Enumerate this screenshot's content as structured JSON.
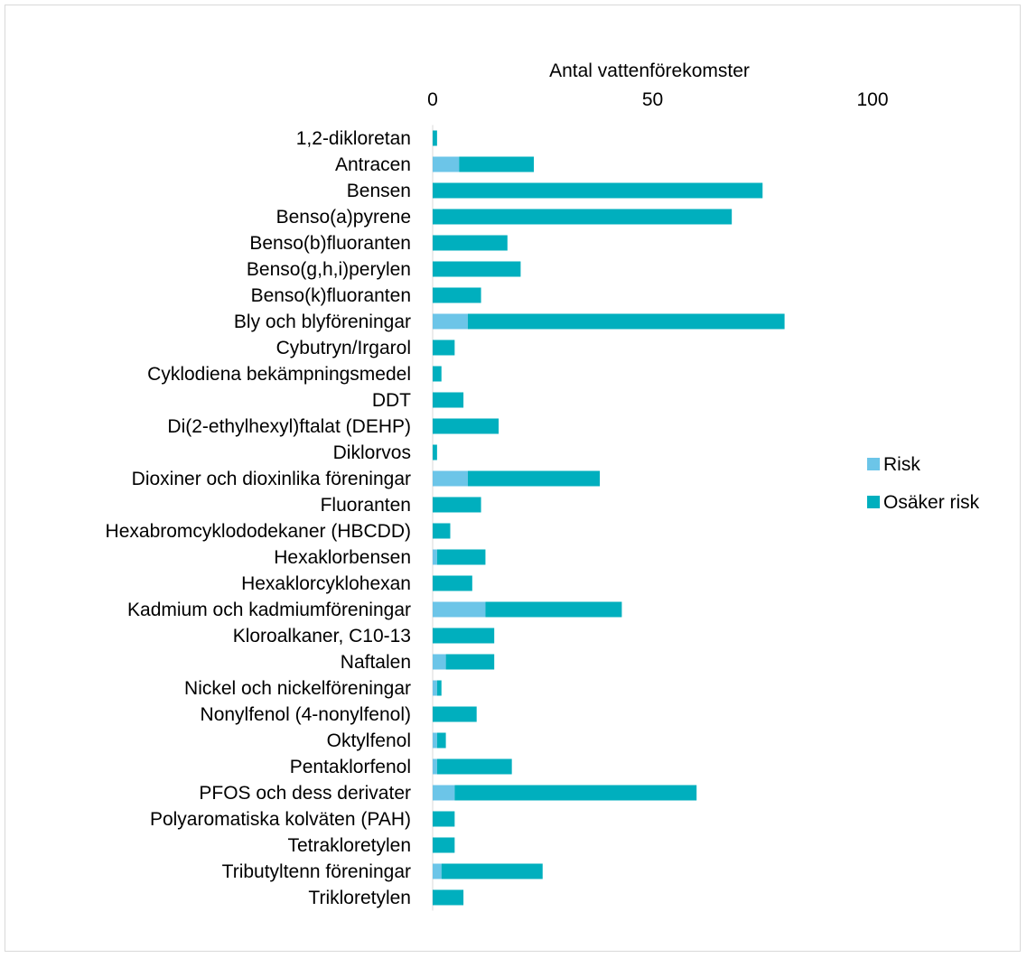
{
  "chart_data": {
    "type": "bar",
    "orientation": "horizontal",
    "stacked": true,
    "xlabel": "Antal vattenförekomster",
    "xaxis_position": "top",
    "xlim": [
      0,
      100
    ],
    "xticks": [
      0,
      50,
      100
    ],
    "grid": false,
    "legend_position": "right",
    "categories": [
      "1,2-dikloretan",
      "Antracen",
      "Bensen",
      "Benso(a)pyrene",
      "Benso(b)fluoranten",
      "Benso(g,h,i)perylen",
      "Benso(k)fluoranten",
      "Bly och blyföreningar",
      "Cybutryn/Irgarol",
      "Cyklodiena bekämpningsmedel",
      "DDT",
      "Di(2-ethylhexyl)ftalat (DEHP)",
      "Diklorvos",
      "Dioxiner och dioxinlika föreningar",
      "Fluoranten",
      "Hexabromcyklododekaner (HBCDD)",
      "Hexaklorbensen",
      "Hexaklorcyklohexan",
      "Kadmium och kadmiumföreningar",
      "Kloroalkaner, C10-13",
      "Naftalen",
      "Nickel och nickelföreningar",
      "Nonylfenol (4-nonylfenol)",
      "Oktylfenol",
      "Pentaklorfenol",
      "PFOS och dess derivater",
      "Polyaromatiska kolväten (PAH)",
      "Tetrakloretylen",
      "Tributyltenn föreningar",
      "Trikloretylen"
    ],
    "series": [
      {
        "name": "Risk",
        "color": "#6CC5E8",
        "values": [
          0,
          6,
          0,
          0,
          0,
          0,
          0,
          8,
          0,
          0,
          0,
          0,
          0,
          8,
          0,
          0,
          1,
          0,
          12,
          0,
          3,
          1,
          0,
          1,
          1,
          5,
          0,
          0,
          2,
          0
        ]
      },
      {
        "name": "Osäker risk",
        "color": "#00AFBE",
        "values": [
          1,
          17,
          75,
          68,
          17,
          20,
          11,
          72,
          5,
          2,
          7,
          15,
          1,
          30,
          11,
          4,
          11,
          9,
          31,
          14,
          11,
          1,
          10,
          2,
          17,
          55,
          5,
          5,
          23,
          7
        ]
      }
    ]
  }
}
